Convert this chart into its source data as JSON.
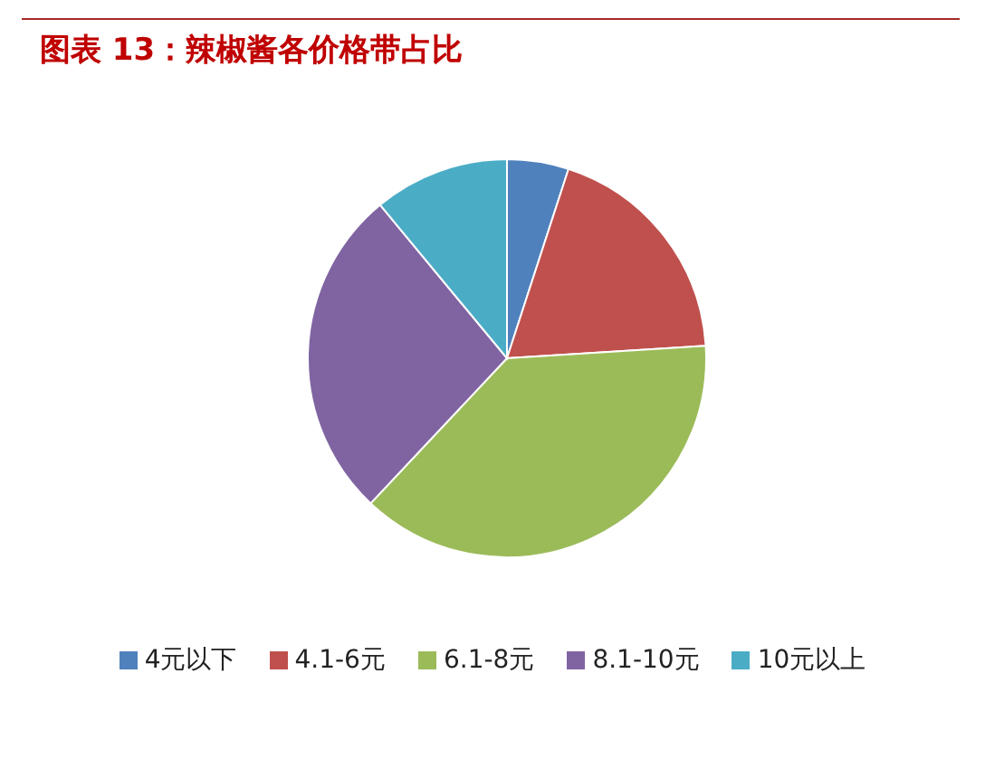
{
  "chart_data": {
    "type": "pie",
    "title": "图表 13：辣椒酱各价格带占比",
    "categories": [
      "4元以下",
      "4.1-6元",
      "6.1-8元",
      "8.1-10元",
      "10元以上"
    ],
    "values": [
      5,
      19,
      38,
      27,
      11
    ],
    "colors": [
      "#4f81bd",
      "#c0504d",
      "#9bbb59",
      "#8064a2",
      "#4bacc6"
    ],
    "legend": "bottom"
  }
}
